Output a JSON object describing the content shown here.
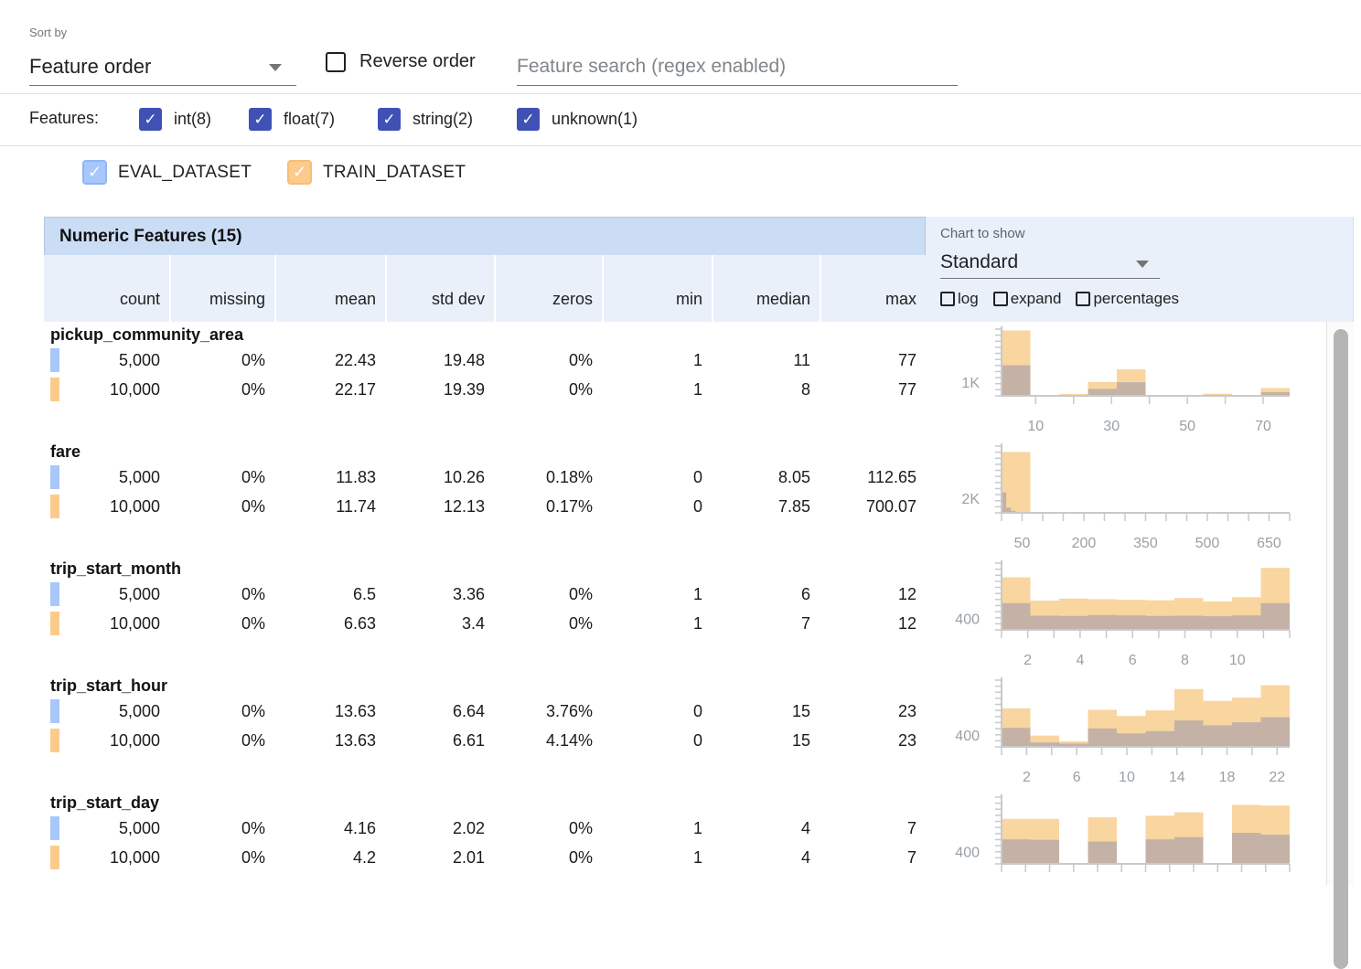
{
  "icons": {
    "check": "✓"
  },
  "toolbar": {
    "sort_label": "Sort by",
    "sort_value": "Feature order",
    "reverse_label": "Reverse order",
    "search_placeholder": "Feature search (regex enabled)"
  },
  "filters": {
    "label": "Features:",
    "items": [
      {
        "label": "int(8)",
        "checked": true
      },
      {
        "label": "float(7)",
        "checked": true
      },
      {
        "label": "string(2)",
        "checked": true
      },
      {
        "label": "unknown(1)",
        "checked": true
      }
    ],
    "checkbox_color": "#3f51b5"
  },
  "datasets": {
    "items": [
      {
        "label": "EVAL_DATASET",
        "checked": true,
        "color": "#a8c7fa",
        "border": "#8fb4f8"
      },
      {
        "label": "TRAIN_DATASET",
        "checked": true,
        "color": "#fbcb8e",
        "border": "#f8bd74"
      }
    ]
  },
  "chart_controls": {
    "label": "Chart to show",
    "value": "Standard",
    "checks": [
      {
        "label": "log",
        "checked": false
      },
      {
        "label": "expand",
        "checked": false
      },
      {
        "label": "percentages",
        "checked": false
      }
    ]
  },
  "table": {
    "title": "Numeric Features (15)",
    "columns": [
      "count",
      "missing",
      "mean",
      "std dev",
      "zeros",
      "min",
      "median",
      "max"
    ],
    "features": [
      {
        "name": "pickup_community_area",
        "rows": [
          {
            "dataset": "EVAL_DATASET",
            "values": [
              "5,000",
              "0%",
              "22.43",
              "19.48",
              "0%",
              "1",
              "11",
              "77"
            ]
          },
          {
            "dataset": "TRAIN_DATASET",
            "values": [
              "10,000",
              "0%",
              "22.17",
              "19.39",
              "0%",
              "1",
              "8",
              "77"
            ]
          }
        ]
      },
      {
        "name": "fare",
        "rows": [
          {
            "dataset": "EVAL_DATASET",
            "values": [
              "5,000",
              "0%",
              "11.83",
              "10.26",
              "0.18%",
              "0",
              "8.05",
              "112.65"
            ]
          },
          {
            "dataset": "TRAIN_DATASET",
            "values": [
              "10,000",
              "0%",
              "11.74",
              "12.13",
              "0.17%",
              "0",
              "7.85",
              "700.07"
            ]
          }
        ]
      },
      {
        "name": "trip_start_month",
        "rows": [
          {
            "dataset": "EVAL_DATASET",
            "values": [
              "5,000",
              "0%",
              "6.5",
              "3.36",
              "0%",
              "1",
              "6",
              "12"
            ]
          },
          {
            "dataset": "TRAIN_DATASET",
            "values": [
              "10,000",
              "0%",
              "6.63",
              "3.4",
              "0%",
              "1",
              "7",
              "12"
            ]
          }
        ]
      },
      {
        "name": "trip_start_hour",
        "rows": [
          {
            "dataset": "EVAL_DATASET",
            "values": [
              "5,000",
              "0%",
              "13.63",
              "6.64",
              "3.76%",
              "0",
              "15",
              "23"
            ]
          },
          {
            "dataset": "TRAIN_DATASET",
            "values": [
              "10,000",
              "0%",
              "13.63",
              "6.61",
              "4.14%",
              "0",
              "15",
              "23"
            ]
          }
        ]
      },
      {
        "name": "trip_start_day",
        "rows": [
          {
            "dataset": "EVAL_DATASET",
            "values": [
              "5,000",
              "0%",
              "4.16",
              "2.02",
              "0%",
              "1",
              "4",
              "7"
            ]
          },
          {
            "dataset": "TRAIN_DATASET",
            "values": [
              "10,000",
              "0%",
              "4.2",
              "2.01",
              "0%",
              "1",
              "4",
              "7"
            ]
          }
        ]
      }
    ]
  },
  "chart_data": [
    {
      "type": "histogram",
      "feature": "pickup_community_area",
      "ylabel": "1K",
      "ylabel_value": 1000,
      "scale_max": 4800,
      "xmin": 1,
      "xmax": 77,
      "tick_step": 10,
      "xticks": [
        10,
        30,
        50,
        70
      ],
      "series": [
        {
          "name": "TRAIN_DATASET",
          "color": "#f9d5a0",
          "bin_min": 1,
          "bin_max": 77,
          "counts": [
            4700,
            60,
            130,
            1000,
            1900,
            50,
            40,
            150,
            40,
            560
          ]
        },
        {
          "name": "EVAL_DATASET (overlap)",
          "color": "#c4b2a6",
          "bin_min": 1,
          "bin_max": 77,
          "counts": [
            2200,
            30,
            60,
            500,
            980,
            25,
            20,
            70,
            20,
            260
          ]
        }
      ]
    },
    {
      "type": "histogram",
      "feature": "fare",
      "ylabel": "2K",
      "ylabel_value": 2000,
      "scale_max": 9000,
      "xmin": 0,
      "xmax": 700.07,
      "tick_step": 50,
      "xticks": [
        50,
        200,
        350,
        500,
        650
      ],
      "series": [
        {
          "name": "TRAIN_DATASET",
          "color": "#f9d5a0",
          "bin_min": 0,
          "bin_max": 700.07,
          "counts": [
            8200,
            40,
            15,
            8,
            5,
            3,
            2,
            2,
            1,
            2
          ]
        },
        {
          "name": "EVAL_DATASET (overlap)",
          "color": "#c4b2a6",
          "bin_min": 0,
          "bin_max": 112.65,
          "counts": [
            2750,
            700,
            280,
            130,
            70,
            45,
            30,
            20,
            15,
            10
          ]
        }
      ]
    },
    {
      "type": "histogram",
      "feature": "trip_start_month",
      "ylabel": "400",
      "ylabel_value": 400,
      "scale_max": 2350,
      "xmin": 1,
      "xmax": 12,
      "tick_step": 1,
      "xticks": [
        2,
        4,
        6,
        8,
        10
      ],
      "series": [
        {
          "name": "TRAIN_DATASET",
          "color": "#f9d5a0",
          "bin_min": 1,
          "bin_max": 12,
          "counts": [
            1850,
            1030,
            1100,
            1080,
            1060,
            1040,
            1120,
            1000,
            1150,
            2180
          ]
        },
        {
          "name": "EVAL_DATASET (overlap)",
          "color": "#c4b2a6",
          "bin_min": 1,
          "bin_max": 12,
          "counts": [
            940,
            500,
            490,
            520,
            510,
            490,
            500,
            480,
            510,
            940
          ]
        }
      ]
    },
    {
      "type": "histogram",
      "feature": "trip_start_hour",
      "ylabel": "400",
      "ylabel_value": 400,
      "scale_max": 2250,
      "xmin": 0,
      "xmax": 23,
      "tick_step": 2,
      "xticks": [
        2,
        6,
        10,
        14,
        18,
        22
      ],
      "series": [
        {
          "name": "TRAIN_DATASET",
          "color": "#f9d5a0",
          "bin_min": 0,
          "bin_max": 23,
          "counts": [
            1300,
            380,
            185,
            1250,
            1040,
            1230,
            1950,
            1550,
            1660,
            2075
          ]
        },
        {
          "name": "EVAL_DATASET (overlap)",
          "color": "#c4b2a6",
          "bin_min": 0,
          "bin_max": 23,
          "counts": [
            640,
            150,
            110,
            620,
            455,
            530,
            890,
            725,
            830,
            1000
          ]
        }
      ]
    },
    {
      "type": "histogram",
      "feature": "trip_start_day",
      "ylabel": "400",
      "ylabel_value": 400,
      "scale_max": 2150,
      "xmin": 1,
      "xmax": 7,
      "tick_step": 0.5,
      "xticks": [],
      "series": [
        {
          "name": "TRAIN_DATASET",
          "color": "#f9d5a0",
          "bin_min": 1,
          "bin_max": 7,
          "counts": [
            1450,
            1450,
            0,
            1500,
            0,
            1550,
            1660,
            0,
            1900,
            1880
          ]
        },
        {
          "name": "EVAL_DATASET (overlap)",
          "color": "#c4b2a6",
          "bin_min": 1,
          "bin_max": 7,
          "counts": [
            790,
            775,
            0,
            720,
            0,
            790,
            860,
            0,
            1000,
            940
          ]
        }
      ]
    }
  ]
}
